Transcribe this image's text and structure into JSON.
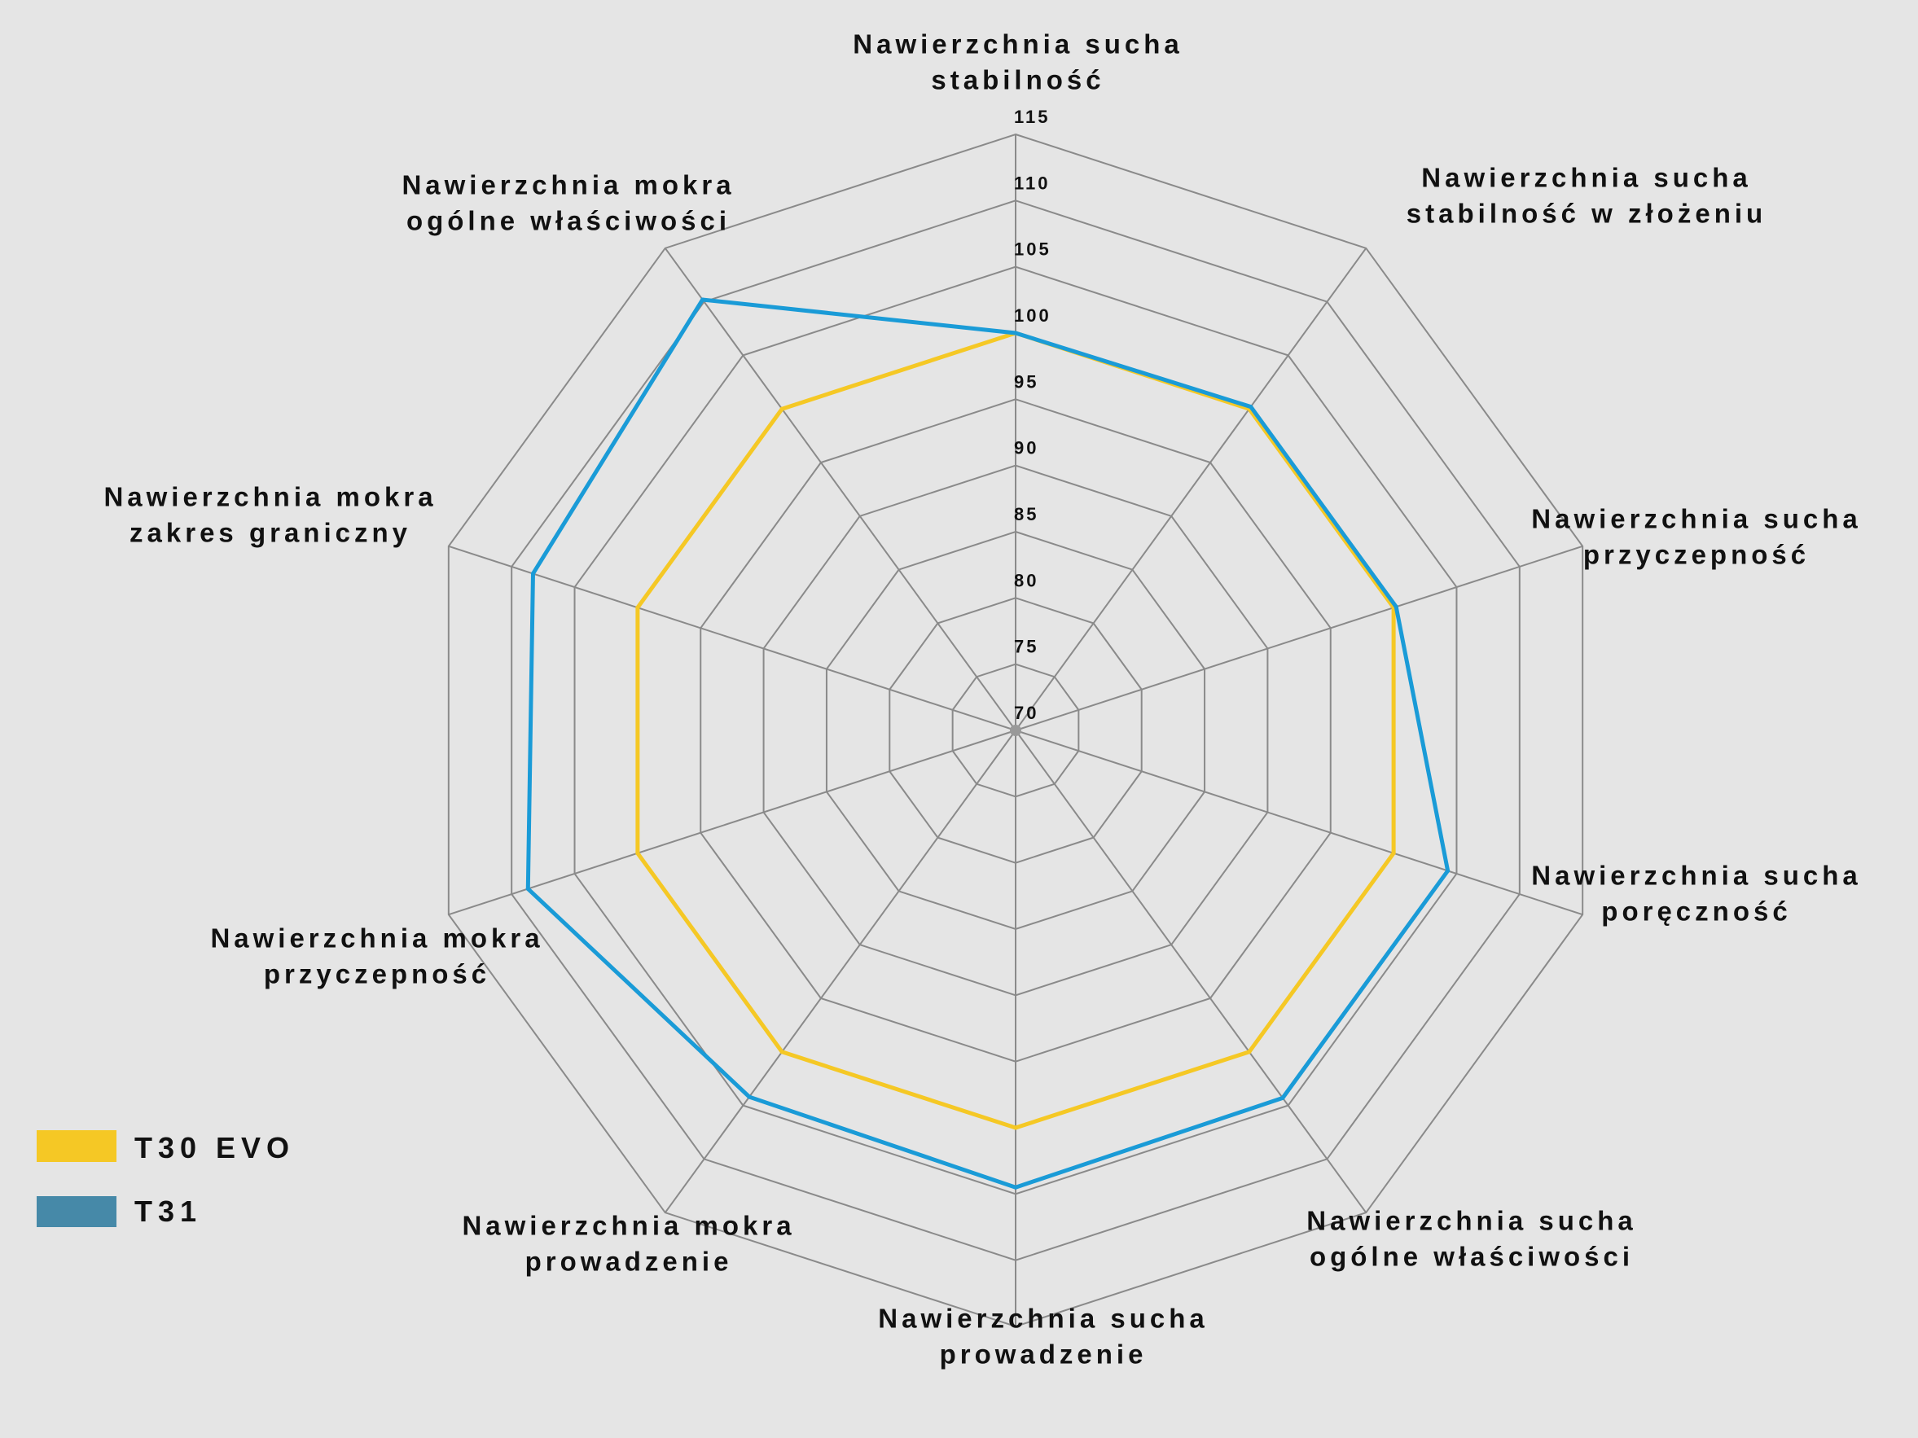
{
  "chart_data": {
    "type": "radar",
    "axes": [
      [
        "Nawierzchnia sucha",
        "stabilność"
      ],
      [
        "Nawierzchnia sucha",
        "stabilność w złożeniu"
      ],
      [
        "Nawierzchnia sucha",
        "przyczepność"
      ],
      [
        "Nawierzchnia sucha",
        "poręczność"
      ],
      [
        "Nawierzchnia sucha",
        "ogólne właściwości"
      ],
      [
        "Nawierzchnia sucha",
        "prowadzenie"
      ],
      [
        "Nawierzchnia mokra",
        "prowadzenie"
      ],
      [
        "Nawierzchnia mokra",
        "przyczepność"
      ],
      [
        "Nawierzchnia mokra",
        "zakres graniczny"
      ],
      [
        "Nawierzchnia mokra",
        "ogólne właściwości"
      ]
    ],
    "ticks": [
      "70",
      "75",
      "80",
      "85",
      "90",
      "95",
      "100",
      "105",
      "110",
      "115"
    ],
    "range": [
      70,
      115
    ],
    "series": [
      {
        "name": "T30 EVO",
        "color": "#f5c825",
        "legend_color": "#f5c825",
        "values": [
          100,
          100,
          100,
          100,
          100,
          100,
          100,
          100,
          100,
          100
        ]
      },
      {
        "name": "T31",
        "color": "#1a9bd7",
        "legend_color": "#4689a8",
        "values": [
          100,
          100.2,
          100.2,
          104.3,
          104.3,
          104.5,
          104.2,
          108.7,
          108.3,
          110.2
        ]
      }
    ],
    "legend_placement": "bottom-left",
    "grid": true
  }
}
